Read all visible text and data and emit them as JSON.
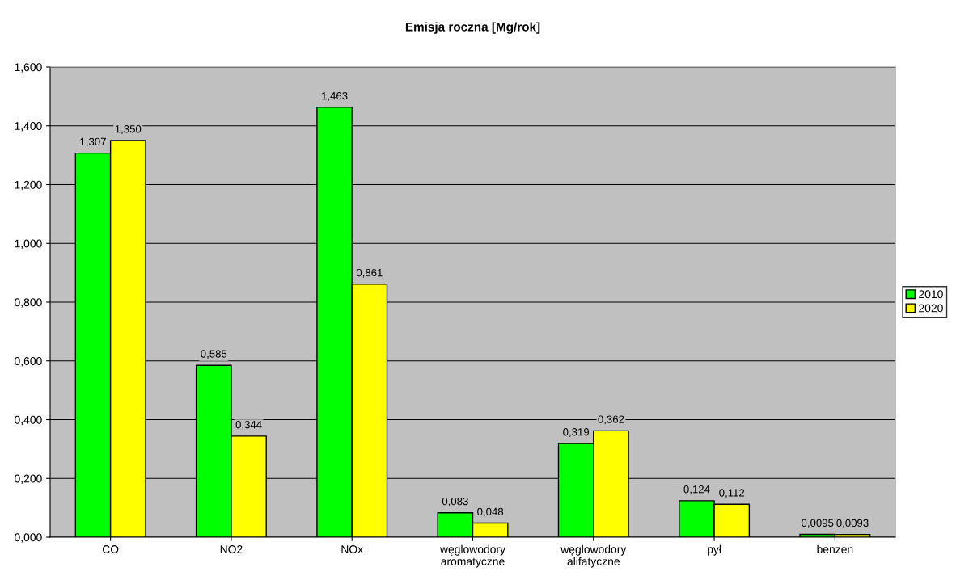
{
  "chart_data": {
    "type": "bar",
    "title": "Emisja roczna [Mg/rok]",
    "categories": [
      "CO",
      "NO2",
      "NOx",
      "węglowodory\naromatyczne",
      "węglowodory\nalifatyczne",
      "pył",
      "benzen"
    ],
    "series": [
      {
        "name": "2010",
        "color": "#00ff00",
        "values": [
          1.307,
          0.585,
          1.463,
          0.083,
          0.319,
          0.124,
          0.0095
        ],
        "value_labels": [
          "1,307",
          "0,585",
          "1,463",
          "0,083",
          "0,319",
          "0,124",
          "0,0095"
        ]
      },
      {
        "name": "2020",
        "color": "#ffff00",
        "values": [
          1.35,
          0.344,
          0.861,
          0.048,
          0.362,
          0.112,
          0.0093
        ],
        "value_labels": [
          "1,350",
          "0,344",
          "0,861",
          "0,048",
          "0,362",
          "0,112",
          "0,0093"
        ]
      }
    ],
    "ylim": [
      0,
      1.6
    ],
    "yticks": [
      {
        "value": 0,
        "label": "0,000"
      },
      {
        "value": 0.2,
        "label": "0,200"
      },
      {
        "value": 0.4,
        "label": "0,400"
      },
      {
        "value": 0.6,
        "label": "0,600"
      },
      {
        "value": 0.8,
        "label": "0,800"
      },
      {
        "value": 1.0,
        "label": "1,000"
      },
      {
        "value": 1.2,
        "label": "1,200"
      },
      {
        "value": 1.4,
        "label": "1,400"
      },
      {
        "value": 1.6,
        "label": "1,600"
      }
    ],
    "grid": "y",
    "legend": "right"
  }
}
